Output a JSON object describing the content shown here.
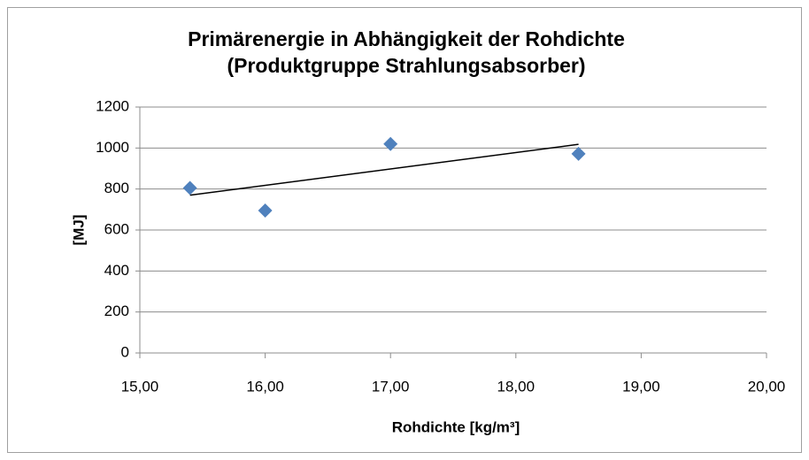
{
  "chart_data": {
    "type": "scatter",
    "title": [
      "Primärenergie in Abhängigkeit der Rohdichte",
      "(Produktgruppe Strahlungsabsorber)"
    ],
    "x_label": "Rohdichte [kg/m³]",
    "y_label": "[MJ]",
    "series": [
      {
        "x": [
          15.4,
          16.0,
          17.0,
          18.5
        ],
        "values": [
          805,
          695,
          1020,
          972
        ],
        "color": "#4f81bd"
      }
    ],
    "trendline": {
      "x": [
        15.4,
        18.5
      ],
      "values": [
        770,
        1018
      ],
      "color": "#000000"
    },
    "xlim": [
      15,
      20
    ],
    "xticks": [
      {
        "value": 15,
        "label": "15,00"
      },
      {
        "value": 16,
        "label": "16,00"
      },
      {
        "value": 17,
        "label": "17,00"
      },
      {
        "value": 18,
        "label": "18,00"
      },
      {
        "value": 19,
        "label": "19,00"
      },
      {
        "value": 20,
        "label": "20,00"
      }
    ],
    "ylim": [
      0,
      1200
    ],
    "yticks": [
      0,
      200,
      400,
      600,
      800,
      1000,
      1200
    ],
    "grid": true
  }
}
